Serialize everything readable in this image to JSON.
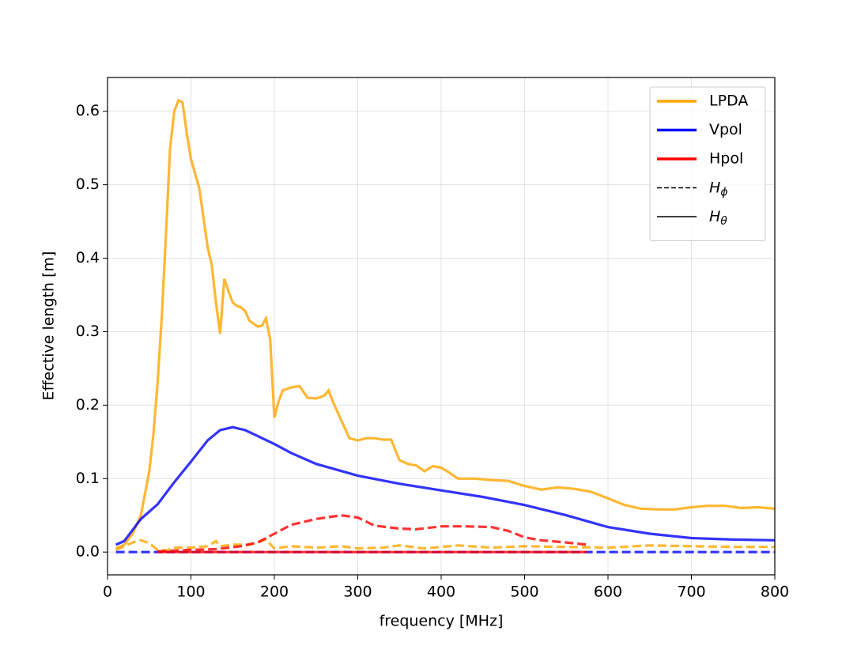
{
  "chart_data": {
    "type": "line",
    "xlabel": "frequency [MHz]",
    "ylabel": "Effective length [m]",
    "xlim": [
      0,
      800
    ],
    "ylim": [
      -0.031,
      0.646
    ],
    "xticks": [
      0,
      100,
      200,
      300,
      400,
      500,
      600,
      700,
      800
    ],
    "yticks": [
      {
        "value": 0,
        "label": "0.0"
      },
      0.1,
      0.2,
      0.3,
      0.4,
      0.5,
      0.6
    ],
    "grid": true,
    "legend_position": "upper right",
    "legend": [
      {
        "label": "LPDA",
        "color": "#ffa500",
        "linestyle": "solid"
      },
      {
        "label": "Vpol",
        "color": "#0000ff",
        "linestyle": "solid"
      },
      {
        "label": "Hpol",
        "color": "#ff0000",
        "linestyle": "solid"
      },
      {
        "label": {
          "base": "H",
          "sub": "ϕ"
        },
        "color": "#000000",
        "linestyle": "dashed"
      },
      {
        "label": {
          "base": "H",
          "sub": "θ"
        },
        "color": "#000000",
        "linestyle": "solid"
      }
    ],
    "series": [
      {
        "color": "#ffa500",
        "alpha": 0.8,
        "linestyle": "solid",
        "x": [
          10,
          20,
          30,
          40,
          50,
          55,
          60,
          65,
          70,
          75,
          80,
          85,
          90,
          95,
          100,
          110,
          120,
          125,
          130,
          135,
          140,
          145,
          150,
          155,
          160,
          165,
          170,
          180,
          185,
          190,
          195,
          200,
          205,
          210,
          220,
          230,
          240,
          250,
          260,
          265,
          270,
          280,
          290,
          300,
          310,
          320,
          330,
          340,
          350,
          360,
          370,
          380,
          390,
          400,
          410,
          420,
          440,
          460,
          480,
          500,
          520,
          540,
          560,
          580,
          600,
          620,
          640,
          660,
          680,
          700,
          720,
          740,
          760,
          780,
          800
        ],
        "values": [
          0.005,
          0.01,
          0.025,
          0.05,
          0.11,
          0.16,
          0.23,
          0.32,
          0.43,
          0.55,
          0.6,
          0.615,
          0.612,
          0.57,
          0.535,
          0.495,
          0.415,
          0.39,
          0.34,
          0.297,
          0.372,
          0.355,
          0.34,
          0.335,
          0.333,
          0.328,
          0.315,
          0.307,
          0.308,
          0.318,
          0.29,
          0.183,
          0.205,
          0.22,
          0.224,
          0.226,
          0.21,
          0.209,
          0.213,
          0.22,
          0.205,
          0.18,
          0.155,
          0.152,
          0.155,
          0.155,
          0.153,
          0.153,
          0.125,
          0.12,
          0.118,
          0.11,
          0.117,
          0.115,
          0.108,
          0.1,
          0.1,
          0.098,
          0.097,
          0.09,
          0.085,
          0.088,
          0.086,
          0.082,
          0.073,
          0.064,
          0.059,
          0.058,
          0.058,
          0.061,
          0.063,
          0.063,
          0.06,
          0.061,
          0.059
        ]
      },
      {
        "color": "#ffa500",
        "alpha": 0.8,
        "linestyle": "dashed",
        "x": [
          10,
          20,
          30,
          40,
          50,
          60,
          70,
          80,
          100,
          120,
          130,
          135,
          150,
          170,
          190,
          200,
          220,
          250,
          280,
          300,
          330,
          350,
          380,
          420,
          460,
          500,
          550,
          600,
          650,
          700,
          750,
          800
        ],
        "values": [
          0.003,
          0.008,
          0.013,
          0.016,
          0.012,
          0.003,
          0.002,
          0.006,
          0.006,
          0.008,
          0.015,
          0.008,
          0.01,
          0.01,
          0.017,
          0.005,
          0.008,
          0.006,
          0.008,
          0.005,
          0.006,
          0.009,
          0.005,
          0.009,
          0.006,
          0.008,
          0.007,
          0.006,
          0.009,
          0.008,
          0.007,
          0.007
        ]
      },
      {
        "color": "#0000ff",
        "alpha": 0.8,
        "linestyle": "solid",
        "x": [
          10,
          20,
          30,
          40,
          60,
          80,
          100,
          120,
          135,
          150,
          165,
          180,
          200,
          220,
          250,
          300,
          350,
          400,
          450,
          500,
          550,
          600,
          650,
          700,
          750,
          800
        ],
        "values": [
          0.01,
          0.015,
          0.03,
          0.045,
          0.065,
          0.095,
          0.123,
          0.152,
          0.166,
          0.17,
          0.166,
          0.158,
          0.147,
          0.135,
          0.12,
          0.104,
          0.093,
          0.084,
          0.075,
          0.064,
          0.05,
          0.034,
          0.025,
          0.019,
          0.017,
          0.016
        ]
      },
      {
        "color": "#0000ff",
        "alpha": 0.8,
        "linestyle": "dashed",
        "x": [
          10,
          800
        ],
        "values": [
          0,
          0
        ]
      },
      {
        "color": "#ff0000",
        "alpha": 0.8,
        "linestyle": "solid",
        "x": [
          60,
          575
        ],
        "values": [
          0,
          0
        ]
      },
      {
        "color": "#ff0000",
        "alpha": 0.8,
        "linestyle": "dashed",
        "x": [
          60,
          100,
          130,
          160,
          180,
          200,
          220,
          250,
          280,
          300,
          320,
          350,
          370,
          400,
          430,
          460,
          480,
          500,
          520,
          550,
          575
        ],
        "values": [
          0.001,
          0.003,
          0.004,
          0.008,
          0.013,
          0.025,
          0.037,
          0.045,
          0.05,
          0.047,
          0.036,
          0.032,
          0.031,
          0.035,
          0.035,
          0.034,
          0.029,
          0.02,
          0.016,
          0.013,
          0.01
        ]
      }
    ]
  }
}
